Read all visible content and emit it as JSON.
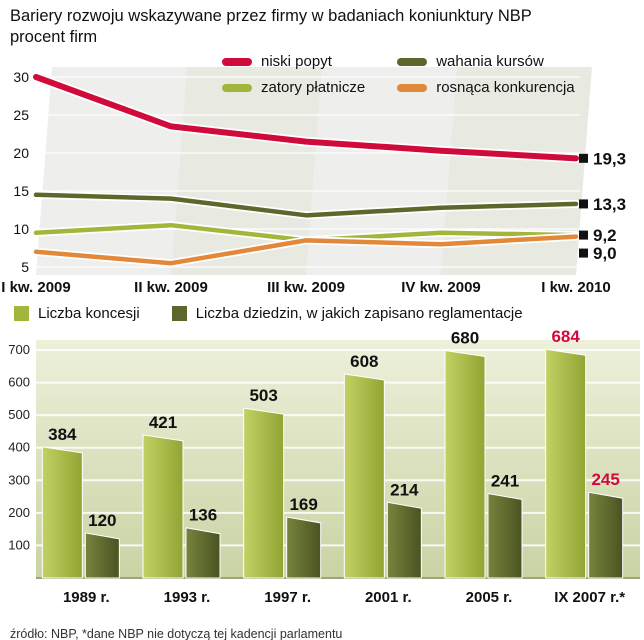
{
  "header": {
    "title_line1": "Bariery rozwoju wskazywane przez firmy w badaniach koniunktury NBP",
    "title_line2": "procent firm"
  },
  "footer": {
    "text": "źródło: NBP, *dane NBP nie dotyczą tej kadencji parlamentu"
  },
  "colors": {
    "red": "#d10a3c",
    "light_green": "#a3b63c",
    "dark_olive": "#5c682b",
    "orange": "#e2883b"
  },
  "chart_data": [
    {
      "type": "line",
      "title": "Bariery rozwoju wskazywane przez firmy w badaniach koniunktury NBP",
      "subtitle": "procent firm",
      "categories": [
        "I kw. 2009",
        "II kw. 2009",
        "III kw. 2009",
        "IV kw. 2009",
        "I kw. 2010"
      ],
      "series": [
        {
          "name": "niski popyt",
          "color": "#d10a3c",
          "values": [
            30,
            23.5,
            21.5,
            20.3,
            19.3
          ],
          "end_label": "19,3"
        },
        {
          "name": "zatory płatnicze",
          "color": "#a3b63c",
          "values": [
            9.5,
            10.5,
            8.5,
            9.5,
            9.2
          ],
          "end_label": "9,2"
        },
        {
          "name": "wahania kursów",
          "color": "#5c682b",
          "values": [
            14.5,
            14,
            11.8,
            12.8,
            13.3
          ],
          "end_label": "13,3"
        },
        {
          "name": "rosnąca konkurencja",
          "color": "#e2883b",
          "values": [
            7,
            5.5,
            8.5,
            8,
            9
          ],
          "end_label": "9,0"
        }
      ],
      "ylim": [
        5,
        30
      ],
      "yticks": [
        30,
        25,
        20,
        15,
        10,
        5
      ],
      "legend_position": "top",
      "grid": true
    },
    {
      "type": "bar",
      "categories": [
        "1989 r.",
        "1993 r.",
        "1997 r.",
        "2001 r.",
        "2005 r.",
        "IX 2007 r.*"
      ],
      "series": [
        {
          "name": "Liczba koncesji",
          "color": "#a3b63c",
          "values": [
            384,
            421,
            503,
            608,
            680,
            684
          ]
        },
        {
          "name": "Liczba dziedzin, w jakich zapisano reglamentacje",
          "color": "#5c682b",
          "values": [
            120,
            136,
            169,
            214,
            241,
            245
          ]
        }
      ],
      "ylim": [
        0,
        700
      ],
      "yticks": [
        700,
        600,
        500,
        400,
        300,
        200,
        100
      ],
      "highlight_last": true,
      "highlight_color": "#d10a3c",
      "legend_position": "top",
      "grid": true
    }
  ]
}
